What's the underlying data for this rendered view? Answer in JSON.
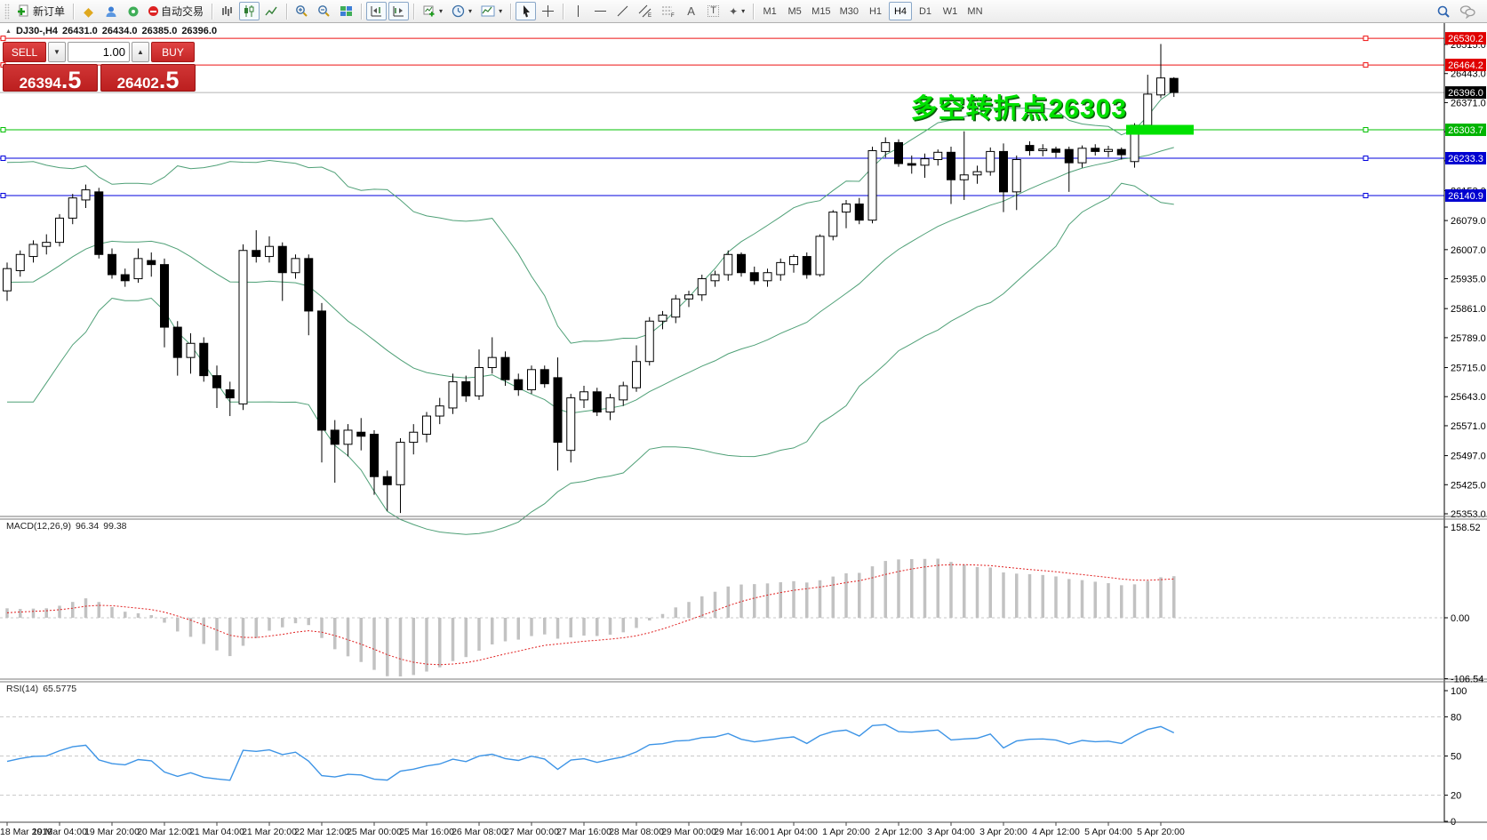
{
  "toolbar": {
    "new_order": "新订单",
    "autotrading": "自动交易",
    "timeframes": [
      "M1",
      "M5",
      "M15",
      "M30",
      "H1",
      "H4",
      "D1",
      "W1",
      "MN"
    ],
    "active_timeframe": "H4",
    "icon_names": [
      "new-order",
      "metaeditor",
      "community",
      "alerts",
      "autotrading-stop",
      "bar-chart",
      "candlestick-chart",
      "line-chart",
      "zoom-in",
      "zoom-out",
      "tile-windows",
      "shift-chart-end",
      "auto-scroll",
      "new-chart",
      "profiles-clock",
      "indicators",
      "cursor",
      "crosshair",
      "vertical-line",
      "horizontal-line",
      "trendline",
      "equidistant-channel",
      "fibonacci",
      "text",
      "text-label",
      "shapes",
      "search",
      "chat"
    ],
    "caret": "▾"
  },
  "chart": {
    "title": {
      "collapse": "▲",
      "symbol_period": "DJ30-,H4",
      "open": "26431.0",
      "high": "26434.0",
      "low": "26385.0",
      "close": "26396.0"
    },
    "trade_panel": {
      "sell_label": "SELL",
      "buy_label": "BUY",
      "volume": "1.00",
      "spin_down": "▼",
      "spin_up": "▲",
      "sell_price": "26394.5",
      "buy_price": "26402.5",
      "sell_main": "26394",
      "sell_big": ".5",
      "buy_main": "26402",
      "buy_big": ".5"
    },
    "annotation": {
      "text": "多空转折点26303",
      "color": "#00e100",
      "highlight_level": 26303.7
    }
  },
  "price_axis": {
    "ticks": [
      26515.0,
      26443.0,
      26371.0,
      26299.0,
      26227.0,
      26153.0,
      26079.0,
      26007.0,
      25935.0,
      25861.0,
      25789.0,
      25715.0,
      25643.0,
      25571.0,
      25497.0,
      25425.0,
      25353.0
    ],
    "lines": [
      {
        "label": "26530.2",
        "price": 26530.2,
        "color": "#ee1010",
        "badge": "#e00000"
      },
      {
        "label": "26464.2",
        "price": 26464.2,
        "color": "#ee1010",
        "badge": "#e00000"
      },
      {
        "label": "26303.7",
        "price": 26303.7,
        "color": "#00c000",
        "badge": "#00b400"
      },
      {
        "label": "26233.3",
        "price": 26233.3,
        "color": "#0000dd",
        "badge": "#0000d0"
      },
      {
        "label": "26140.9",
        "price": 26140.9,
        "color": "#0000dd",
        "badge": "#0000d0"
      }
    ],
    "current_price": {
      "label": "26396.0",
      "price": 26396.0,
      "line_color": "#b3b3b3",
      "badge": "#000000"
    }
  },
  "time_axis": {
    "labels": [
      "18 Mar 2019",
      "19 Mar 04:00",
      "19 Mar 20:00",
      "20 Mar 12:00",
      "21 Mar 04:00",
      "21 Mar 20:00",
      "22 Mar 12:00",
      "25 Mar 00:00",
      "25 Mar 16:00",
      "26 Mar 08:00",
      "27 Mar 00:00",
      "27 Mar 16:00",
      "28 Mar 08:00",
      "29 Mar 00:00",
      "29 Mar 16:00",
      "1 Apr 04:00",
      "1 Apr 20:00",
      "2 Apr 12:00",
      "3 Apr 04:00",
      "3 Apr 20:00",
      "4 Apr 12:00",
      "5 Apr 04:00",
      "5 Apr 20:00"
    ]
  },
  "macd_panel": {
    "label": "MACD(12,26,9)",
    "main_value": "96.34",
    "signal_value": "99.38",
    "scale": [
      158.52,
      0.0,
      -106.54
    ],
    "histogram_color": "#c2c2c2",
    "signal_color": "#e02020"
  },
  "rsi_panel": {
    "label": "RSI(14)",
    "value": "65.5775",
    "scale": [
      100,
      80,
      50,
      20,
      0
    ],
    "levels": [
      80,
      50,
      20
    ],
    "line_color": "#3d94e6"
  },
  "chart_data": {
    "type": "candlestick",
    "symbol": "DJ30-",
    "timeframe": "H4",
    "overlays": {
      "bollinger": {
        "period": 20,
        "deviation": 2,
        "color": "#4fa077"
      }
    },
    "indicators": {
      "macd": {
        "params": "12,26,9",
        "main": 96.34,
        "signal": 99.38
      },
      "rsi": {
        "period": 14,
        "value": 65.5775
      }
    },
    "candles": [
      [
        25905,
        25975,
        25880,
        25960
      ],
      [
        25955,
        26005,
        25940,
        25995
      ],
      [
        25990,
        26030,
        25975,
        26020
      ],
      [
        26015,
        26045,
        25995,
        26025
      ],
      [
        26025,
        26095,
        26015,
        26085
      ],
      [
        26085,
        26145,
        26070,
        26135
      ],
      [
        26130,
        26168,
        26110,
        26155
      ],
      [
        26150,
        26160,
        25985,
        25995
      ],
      [
        25995,
        26010,
        25935,
        25945
      ],
      [
        25945,
        25960,
        25915,
        25930
      ],
      [
        25935,
        26010,
        25925,
        25985
      ],
      [
        25980,
        26000,
        25940,
        25970
      ],
      [
        25970,
        25985,
        25765,
        25815
      ],
      [
        25815,
        25830,
        25695,
        25740
      ],
      [
        25740,
        25800,
        25700,
        25775
      ],
      [
        25775,
        25790,
        25680,
        25695
      ],
      [
        25695,
        25720,
        25615,
        25665
      ],
      [
        25660,
        25680,
        25595,
        25640
      ],
      [
        25625,
        26020,
        25610,
        26005
      ],
      [
        26005,
        26055,
        25975,
        25990
      ],
      [
        25990,
        26040,
        25975,
        26015
      ],
      [
        26015,
        26025,
        25880,
        25950
      ],
      [
        25950,
        25995,
        25935,
        25985
      ],
      [
        25985,
        25995,
        25795,
        25855
      ],
      [
        25855,
        25875,
        25480,
        25560
      ],
      [
        25560,
        25585,
        25430,
        25525
      ],
      [
        25525,
        25575,
        25495,
        25560
      ],
      [
        25555,
        25590,
        25510,
        25545
      ],
      [
        25550,
        25560,
        25400,
        25445
      ],
      [
        25445,
        25460,
        25360,
        25425
      ],
      [
        25425,
        25540,
        25355,
        25530
      ],
      [
        25530,
        25575,
        25500,
        25555
      ],
      [
        25550,
        25605,
        25530,
        25595
      ],
      [
        25595,
        25640,
        25575,
        25620
      ],
      [
        25615,
        25700,
        25600,
        25680
      ],
      [
        25680,
        25695,
        25630,
        25645
      ],
      [
        25645,
        25760,
        25635,
        25715
      ],
      [
        25715,
        25790,
        25700,
        25740
      ],
      [
        25740,
        25755,
        25670,
        25685
      ],
      [
        25685,
        25700,
        25645,
        25660
      ],
      [
        25660,
        25720,
        25650,
        25710
      ],
      [
        25710,
        25720,
        25665,
        25675
      ],
      [
        25690,
        25740,
        25460,
        25530
      ],
      [
        25510,
        25650,
        25480,
        25640
      ],
      [
        25635,
        25670,
        25615,
        25655
      ],
      [
        25655,
        25665,
        25595,
        25605
      ],
      [
        25605,
        25650,
        25585,
        25640
      ],
      [
        25635,
        25680,
        25620,
        25670
      ],
      [
        25665,
        25770,
        25655,
        25730
      ],
      [
        25730,
        25840,
        25720,
        25830
      ],
      [
        25830,
        25855,
        25810,
        25845
      ],
      [
        25840,
        25895,
        25825,
        25885
      ],
      [
        25885,
        25905,
        25865,
        25895
      ],
      [
        25895,
        25945,
        25880,
        25935
      ],
      [
        25930,
        25955,
        25915,
        25945
      ],
      [
        25945,
        26005,
        25930,
        25995
      ],
      [
        25995,
        26000,
        25940,
        25950
      ],
      [
        25950,
        25965,
        25920,
        25930
      ],
      [
        25930,
        25960,
        25915,
        25950
      ],
      [
        25945,
        25985,
        25930,
        25975
      ],
      [
        25970,
        25995,
        25950,
        25990
      ],
      [
        25990,
        26000,
        25935,
        25945
      ],
      [
        25945,
        26045,
        25940,
        26040
      ],
      [
        26040,
        26105,
        26030,
        26100
      ],
      [
        26100,
        26130,
        26060,
        26120
      ],
      [
        26120,
        26135,
        26070,
        26080
      ],
      [
        26080,
        26262,
        26072,
        26252
      ],
      [
        26250,
        26285,
        26235,
        26272
      ],
      [
        26272,
        26280,
        26212,
        26220
      ],
      [
        26220,
        26240,
        26195,
        26216
      ],
      [
        26216,
        26245,
        26185,
        26232
      ],
      [
        26230,
        26255,
        26215,
        26248
      ],
      [
        26248,
        26262,
        26120,
        26180
      ],
      [
        26180,
        26300,
        26130,
        26192
      ],
      [
        26192,
        26215,
        26170,
        26200
      ],
      [
        26200,
        26260,
        26190,
        26250
      ],
      [
        26250,
        26270,
        26100,
        26150
      ],
      [
        26150,
        26240,
        26105,
        26230
      ],
      [
        26265,
        26275,
        26240,
        26252
      ],
      [
        26252,
        26268,
        26238,
        26256
      ],
      [
        26256,
        26262,
        26235,
        26248
      ],
      [
        26255,
        26262,
        26150,
        26222
      ],
      [
        26222,
        26265,
        26210,
        26258
      ],
      [
        26258,
        26268,
        26240,
        26250
      ],
      [
        26250,
        26264,
        26236,
        26255
      ],
      [
        26255,
        26260,
        26230,
        26242
      ],
      [
        26225,
        26320,
        26210,
        26315
      ],
      [
        26315,
        26440,
        26305,
        26392
      ],
      [
        26390,
        26516,
        26382,
        26432
      ],
      [
        26431,
        26434,
        26385,
        26396
      ]
    ]
  }
}
